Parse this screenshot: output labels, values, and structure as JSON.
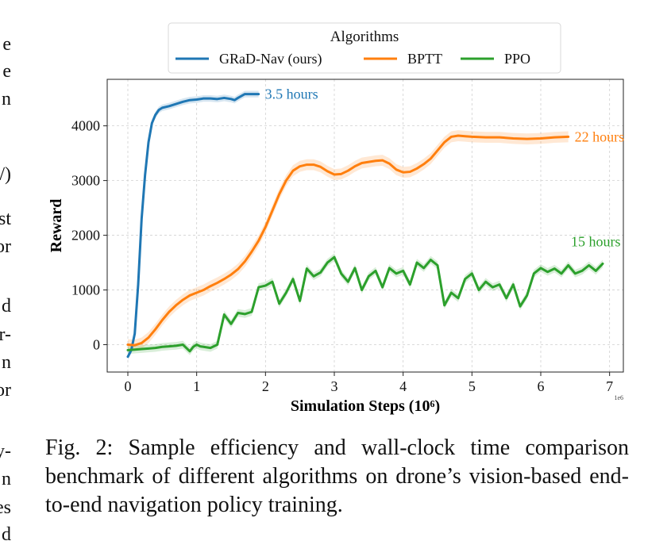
{
  "left_margin_fragments": [
    "e",
    "e",
    "n",
    "/)",
    "st",
    "or",
    "d",
    "r-",
    "n",
    "or",
    "y-",
    "n",
    "es",
    "d"
  ],
  "caption": "Fig. 2: Sample efficiency and wall-clock time comparison benchmark of different algorithms on drone’s vision-based end-to-end navigation policy training.",
  "chart_data": {
    "type": "line",
    "xlabel": "Simulation Steps (10⁶)",
    "ylabel": "Reward",
    "x_multiplier_label": "1e6",
    "xlim": [
      -0.3,
      7.2
    ],
    "ylim": [
      -500,
      4850
    ],
    "xticks": [
      0,
      1,
      2,
      3,
      4,
      5,
      6,
      7
    ],
    "yticks": [
      0,
      1000,
      2000,
      3000,
      4000
    ],
    "grid": true,
    "legend": {
      "title": "Algorithms",
      "placement": "top-center",
      "entries": [
        "GRaD-Nav (ours)",
        "BPTT",
        "PPO"
      ]
    },
    "series": [
      {
        "name": "GRaD-Nav (ours)",
        "color": "#1f77b4",
        "end_label": "3.5 hours",
        "band": 60,
        "x": [
          0,
          0.05,
          0.1,
          0.15,
          0.2,
          0.25,
          0.3,
          0.35,
          0.4,
          0.45,
          0.5,
          0.6,
          0.7,
          0.8,
          0.9,
          1.0,
          1.1,
          1.2,
          1.3,
          1.4,
          1.5,
          1.55,
          1.6,
          1.7,
          1.8,
          1.9
        ],
        "y": [
          -220,
          -100,
          200,
          1100,
          2300,
          3100,
          3700,
          4050,
          4200,
          4290,
          4330,
          4360,
          4400,
          4440,
          4470,
          4480,
          4500,
          4500,
          4490,
          4510,
          4490,
          4470,
          4510,
          4580,
          4580,
          4580
        ]
      },
      {
        "name": "BPTT",
        "color": "#ff7f0e",
        "end_label": "22 hours",
        "band": 100,
        "x": [
          0,
          0.1,
          0.2,
          0.3,
          0.4,
          0.5,
          0.6,
          0.7,
          0.8,
          0.9,
          1.0,
          1.1,
          1.2,
          1.3,
          1.4,
          1.5,
          1.6,
          1.7,
          1.8,
          1.9,
          2.0,
          2.1,
          2.2,
          2.3,
          2.4,
          2.5,
          2.6,
          2.7,
          2.8,
          2.9,
          3.0,
          3.1,
          3.2,
          3.3,
          3.4,
          3.5,
          3.6,
          3.7,
          3.8,
          3.9,
          4.0,
          4.1,
          4.2,
          4.3,
          4.4,
          4.5,
          4.6,
          4.7,
          4.8,
          4.9,
          5.0,
          5.2,
          5.4,
          5.6,
          5.8,
          6.0,
          6.2,
          6.4
        ],
        "y": [
          0,
          -10,
          30,
          130,
          280,
          450,
          600,
          720,
          820,
          900,
          950,
          1000,
          1070,
          1130,
          1200,
          1280,
          1380,
          1520,
          1700,
          1900,
          2150,
          2450,
          2750,
          3000,
          3180,
          3260,
          3290,
          3290,
          3250,
          3170,
          3110,
          3120,
          3180,
          3260,
          3320,
          3340,
          3360,
          3370,
          3310,
          3200,
          3150,
          3160,
          3220,
          3300,
          3400,
          3550,
          3700,
          3800,
          3820,
          3810,
          3800,
          3790,
          3790,
          3770,
          3760,
          3770,
          3790,
          3800
        ]
      },
      {
        "name": "PPO",
        "color": "#2ca02c",
        "end_label": "15 hours",
        "band": 70,
        "x": [
          0,
          0.1,
          0.2,
          0.3,
          0.4,
          0.5,
          0.6,
          0.7,
          0.8,
          0.9,
          0.95,
          1.0,
          1.05,
          1.1,
          1.2,
          1.3,
          1.4,
          1.5,
          1.6,
          1.7,
          1.8,
          1.9,
          2.0,
          2.1,
          2.2,
          2.3,
          2.4,
          2.5,
          2.6,
          2.7,
          2.8,
          2.9,
          3.0,
          3.1,
          3.2,
          3.3,
          3.4,
          3.5,
          3.6,
          3.7,
          3.8,
          3.9,
          4.0,
          4.1,
          4.2,
          4.3,
          4.4,
          4.5,
          4.6,
          4.7,
          4.8,
          4.9,
          5.0,
          5.1,
          5.2,
          5.3,
          5.4,
          5.5,
          5.6,
          5.7,
          5.8,
          5.9,
          6.0,
          6.1,
          6.2,
          6.3,
          6.4,
          6.5,
          6.6,
          6.7,
          6.8,
          6.9
        ],
        "y": [
          -100,
          -90,
          -80,
          -70,
          -60,
          -40,
          -30,
          -20,
          0,
          -120,
          -40,
          0,
          -30,
          -40,
          -60,
          0,
          550,
          380,
          580,
          560,
          600,
          1050,
          1080,
          1150,
          750,
          950,
          1200,
          800,
          1390,
          1250,
          1320,
          1500,
          1600,
          1300,
          1150,
          1400,
          1000,
          1250,
          1350,
          1050,
          1400,
          1300,
          1350,
          1100,
          1500,
          1400,
          1550,
          1450,
          720,
          950,
          850,
          1200,
          1300,
          1000,
          1150,
          1050,
          1100,
          850,
          1100,
          700,
          900,
          1300,
          1400,
          1330,
          1390,
          1300,
          1450,
          1300,
          1350,
          1450,
          1350,
          1480
        ]
      }
    ]
  }
}
